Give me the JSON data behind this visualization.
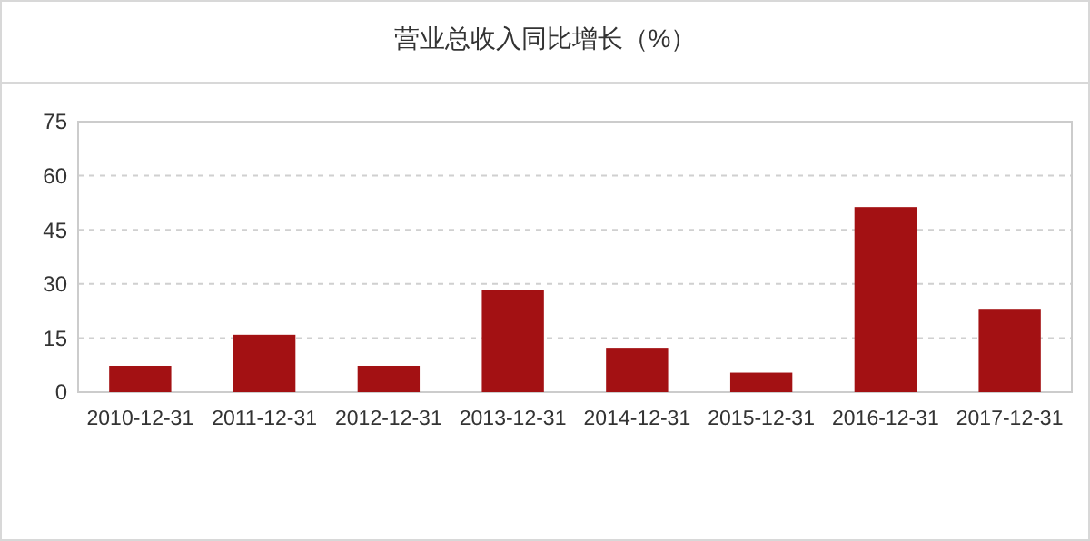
{
  "chart_data": {
    "type": "bar",
    "title": "营业总收入同比增长（%）",
    "categories": [
      "2010-12-31",
      "2011-12-31",
      "2012-12-31",
      "2013-12-31",
      "2014-12-31",
      "2015-12-31",
      "2016-12-31",
      "2017-12-31"
    ],
    "values": [
      7.3,
      15.9,
      7.3,
      28.2,
      12.3,
      5.4,
      51.3,
      23.1
    ],
    "color": "#a31113",
    "ylim": [
      0,
      75
    ],
    "yticks": [
      0,
      15,
      30,
      45,
      60,
      75
    ],
    "grid": "y"
  }
}
